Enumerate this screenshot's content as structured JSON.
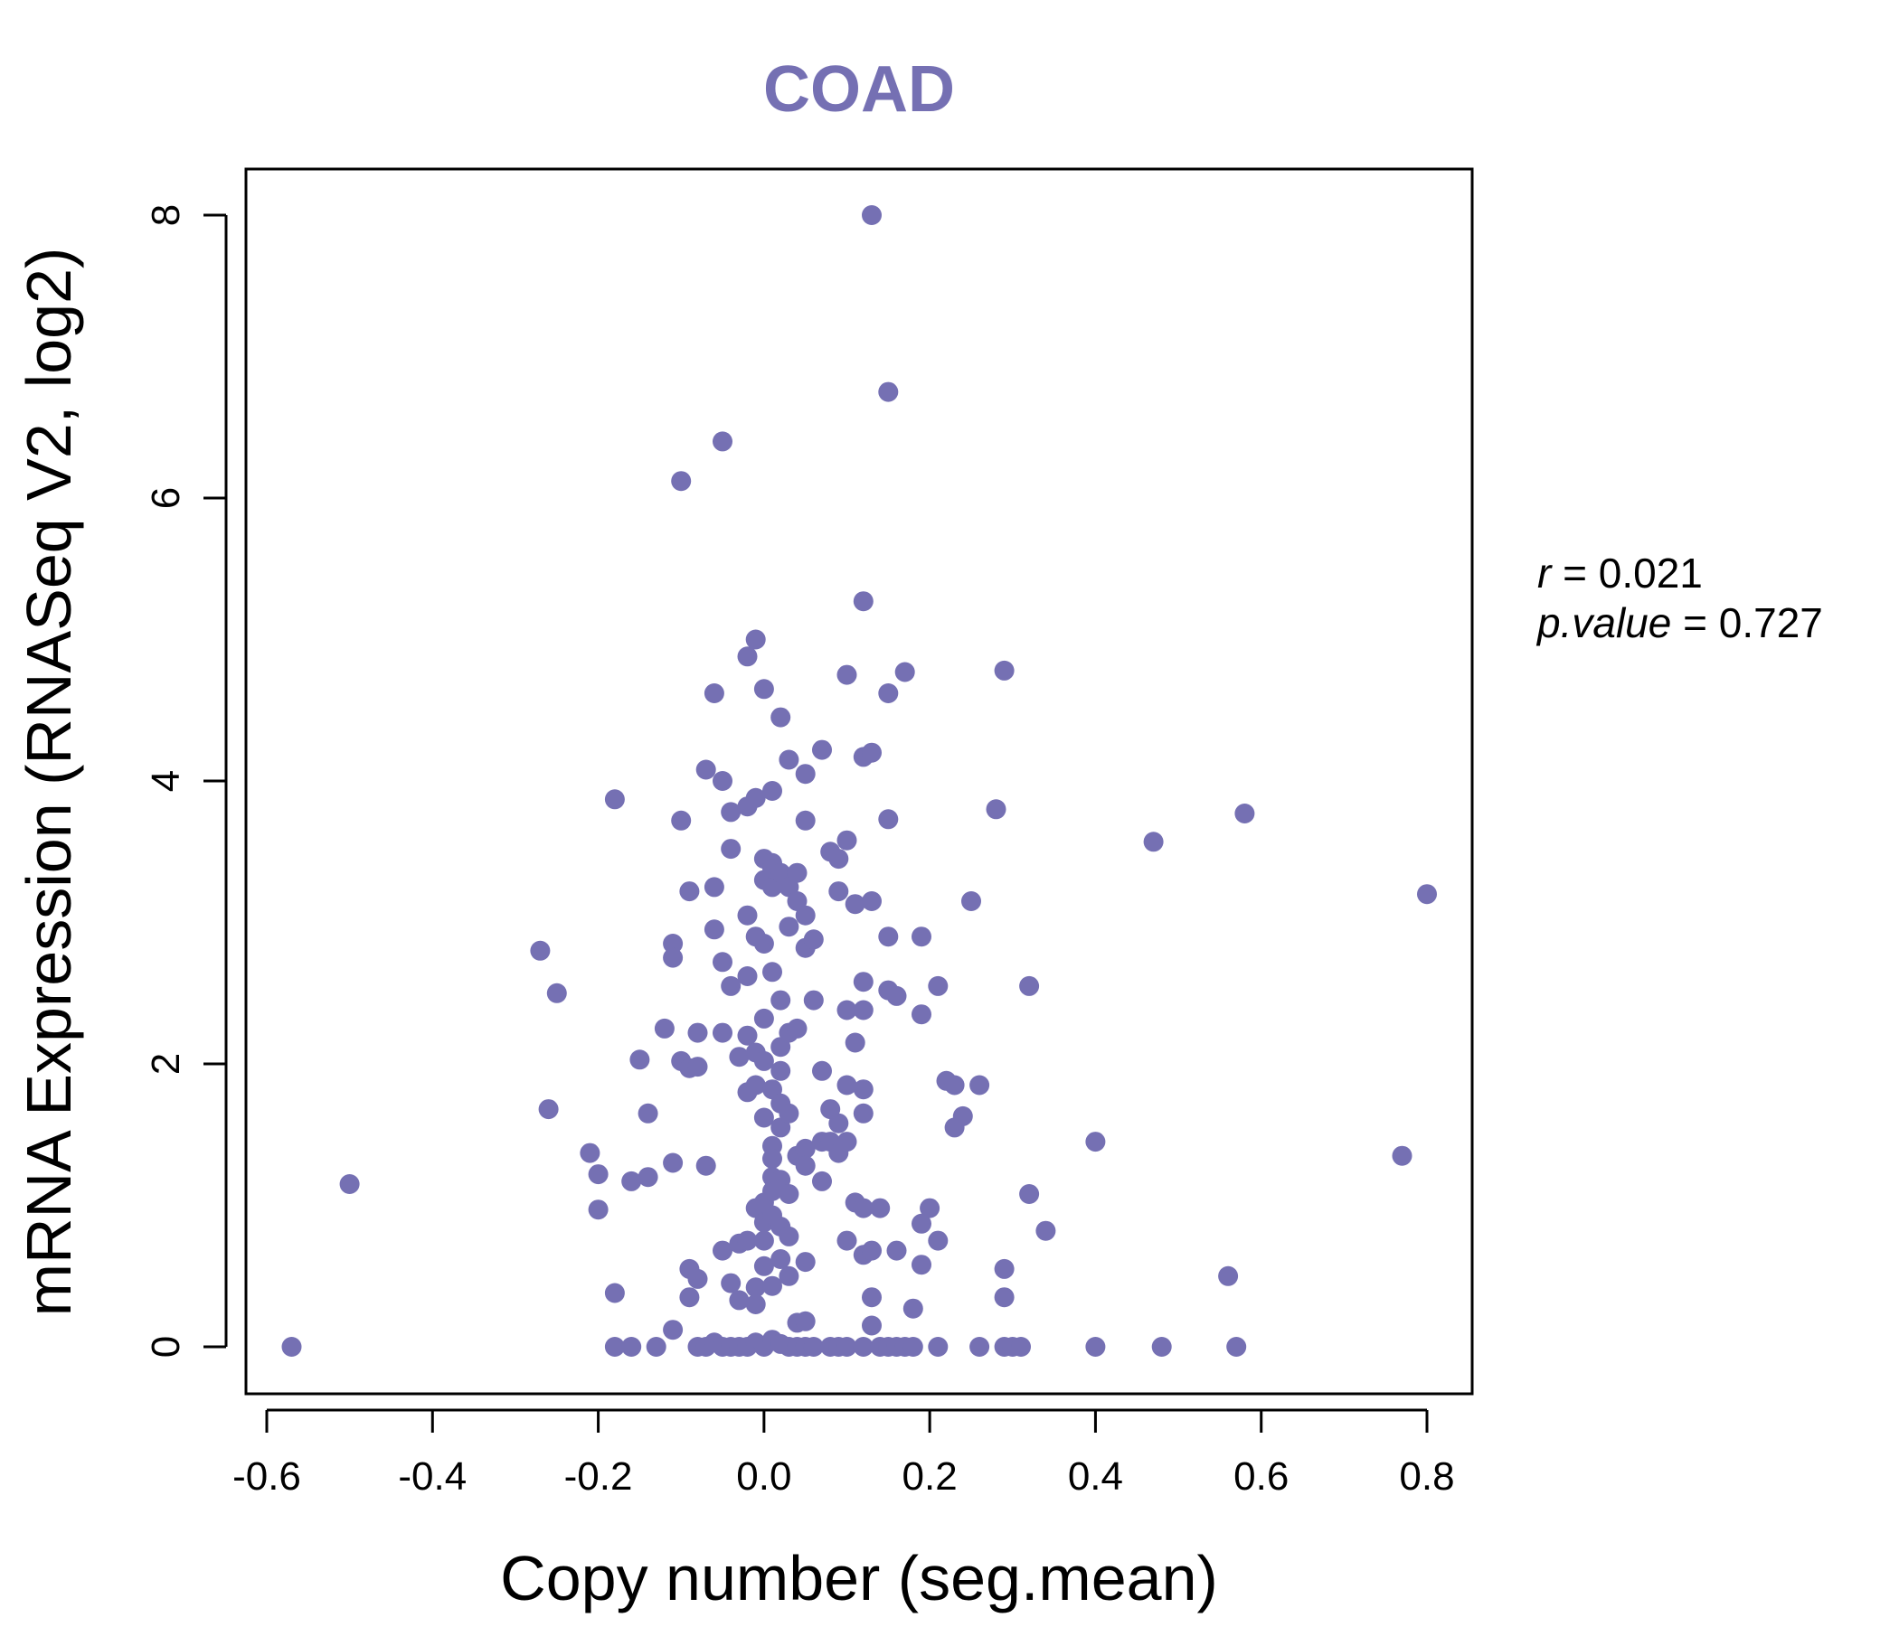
{
  "chart_data": {
    "type": "scatter",
    "title": "COAD",
    "xlabel": "Copy number (seg.mean)",
    "ylabel": "mRNA Expression (RNASeq V2, log2)",
    "xlim": [
      -0.6,
      0.8
    ],
    "ylim": [
      0,
      8
    ],
    "xticks": [
      "-0.6",
      "-0.4",
      "-0.2",
      "0.0",
      "0.2",
      "0.4",
      "0.6",
      "0.8"
    ],
    "yticks": [
      "0",
      "2",
      "4",
      "6",
      "8"
    ],
    "point_color": "#7570b3",
    "stats": {
      "r_label": "r",
      "r_value": "0.021",
      "p_label": "p.value",
      "p_value": "0.727"
    },
    "points": [
      [
        -0.57,
        0
      ],
      [
        -0.5,
        1.15
      ],
      [
        -0.27,
        2.8
      ],
      [
        -0.25,
        2.5
      ],
      [
        -0.26,
        1.68
      ],
      [
        -0.21,
        1.37
      ],
      [
        -0.2,
        1.22
      ],
      [
        -0.2,
        0.97
      ],
      [
        -0.18,
        0.38
      ],
      [
        -0.18,
        0
      ],
      [
        -0.18,
        3.87
      ],
      [
        -0.16,
        1.17
      ],
      [
        -0.16,
        0
      ],
      [
        -0.15,
        2.03
      ],
      [
        -0.14,
        1.2
      ],
      [
        -0.14,
        1.65
      ],
      [
        -0.13,
        0
      ],
      [
        -0.12,
        2.25
      ],
      [
        -0.11,
        1.3
      ],
      [
        -0.11,
        2.85
      ],
      [
        -0.11,
        2.75
      ],
      [
        -0.11,
        0.12
      ],
      [
        -0.1,
        3.72
      ],
      [
        -0.1,
        2.02
      ],
      [
        -0.1,
        6.12
      ],
      [
        -0.09,
        3.22
      ],
      [
        -0.09,
        1.97
      ],
      [
        -0.09,
        0.55
      ],
      [
        -0.09,
        0.35
      ],
      [
        -0.08,
        0.48
      ],
      [
        -0.08,
        2.22
      ],
      [
        -0.08,
        1.98
      ],
      [
        -0.08,
        0
      ],
      [
        -0.07,
        1.28
      ],
      [
        -0.07,
        4.08
      ],
      [
        -0.07,
        0
      ],
      [
        -0.06,
        3.25
      ],
      [
        -0.06,
        4.62
      ],
      [
        -0.06,
        2.95
      ],
      [
        -0.06,
        0.03
      ],
      [
        -0.05,
        6.4
      ],
      [
        -0.05,
        4.0
      ],
      [
        -0.05,
        2.72
      ],
      [
        -0.05,
        2.22
      ],
      [
        -0.05,
        0.68
      ],
      [
        -0.05,
        0
      ],
      [
        -0.04,
        3.78
      ],
      [
        -0.04,
        3.52
      ],
      [
        -0.04,
        2.55
      ],
      [
        -0.04,
        0.45
      ],
      [
        -0.04,
        0
      ],
      [
        -0.03,
        2.05
      ],
      [
        -0.03,
        0.33
      ],
      [
        -0.03,
        0.73
      ],
      [
        -0.03,
        0
      ],
      [
        -0.02,
        3.82
      ],
      [
        -0.02,
        2.2
      ],
      [
        -0.02,
        1.8
      ],
      [
        -0.02,
        4.88
      ],
      [
        -0.02,
        3.05
      ],
      [
        -0.02,
        2.62
      ],
      [
        -0.02,
        0.75
      ],
      [
        -0.02,
        0
      ],
      [
        -0.01,
        5.0
      ],
      [
        -0.01,
        3.88
      ],
      [
        -0.01,
        2.9
      ],
      [
        -0.01,
        1.85
      ],
      [
        -0.01,
        0.98
      ],
      [
        -0.01,
        0.42
      ],
      [
        -0.01,
        0.3
      ],
      [
        -0.01,
        2.08
      ],
      [
        -0.01,
        0.03
      ],
      [
        0.0,
        3.45
      ],
      [
        0.0,
        3.3
      ],
      [
        0.0,
        2.85
      ],
      [
        0.0,
        2.02
      ],
      [
        0.0,
        1.62
      ],
      [
        0.0,
        0.88
      ],
      [
        0.0,
        0.57
      ],
      [
        0.0,
        0
      ],
      [
        0.0,
        4.65
      ],
      [
        0.0,
        2.32
      ],
      [
        0.0,
        1.02
      ],
      [
        0.0,
        0.75
      ],
      [
        0.01,
        3.42
      ],
      [
        0.01,
        3.25
      ],
      [
        0.01,
        2.65
      ],
      [
        0.01,
        1.82
      ],
      [
        0.01,
        1.42
      ],
      [
        0.01,
        1.33
      ],
      [
        0.01,
        1.2
      ],
      [
        0.01,
        0.93
      ],
      [
        0.01,
        0.43
      ],
      [
        0.01,
        0.05
      ],
      [
        0.01,
        3.38
      ],
      [
        0.01,
        3.93
      ],
      [
        0.01,
        1.1
      ],
      [
        0.02,
        4.45
      ],
      [
        0.02,
        3.35
      ],
      [
        0.02,
        2.45
      ],
      [
        0.02,
        2.12
      ],
      [
        0.02,
        1.95
      ],
      [
        0.02,
        1.72
      ],
      [
        0.02,
        1.55
      ],
      [
        0.02,
        1.18
      ],
      [
        0.02,
        0.85
      ],
      [
        0.02,
        0.62
      ],
      [
        0.02,
        0.02
      ],
      [
        0.03,
        4.15
      ],
      [
        0.03,
        3.25
      ],
      [
        0.03,
        2.97
      ],
      [
        0.03,
        2.22
      ],
      [
        0.03,
        1.65
      ],
      [
        0.03,
        1.08
      ],
      [
        0.03,
        0.78
      ],
      [
        0.03,
        0.5
      ],
      [
        0.03,
        0
      ],
      [
        0.04,
        3.35
      ],
      [
        0.04,
        3.15
      ],
      [
        0.04,
        2.25
      ],
      [
        0.04,
        1.35
      ],
      [
        0.04,
        0.17
      ],
      [
        0.04,
        0
      ],
      [
        0.05,
        4.05
      ],
      [
        0.05,
        3.72
      ],
      [
        0.05,
        3.05
      ],
      [
        0.05,
        2.82
      ],
      [
        0.05,
        1.4
      ],
      [
        0.05,
        1.28
      ],
      [
        0.05,
        0.6
      ],
      [
        0.05,
        0.18
      ],
      [
        0.05,
        0
      ],
      [
        0.06,
        2.45
      ],
      [
        0.06,
        2.88
      ],
      [
        0.06,
        0
      ],
      [
        0.07,
        4.22
      ],
      [
        0.07,
        1.95
      ],
      [
        0.07,
        1.45
      ],
      [
        0.07,
        1.17
      ],
      [
        0.08,
        3.5
      ],
      [
        0.08,
        1.68
      ],
      [
        0.08,
        1.45
      ],
      [
        0.08,
        0
      ],
      [
        0.09,
        3.45
      ],
      [
        0.09,
        3.22
      ],
      [
        0.09,
        1.58
      ],
      [
        0.09,
        1.37
      ],
      [
        0.09,
        0
      ],
      [
        0.1,
        4.75
      ],
      [
        0.1,
        3.58
      ],
      [
        0.1,
        2.38
      ],
      [
        0.1,
        1.85
      ],
      [
        0.1,
        1.45
      ],
      [
        0.1,
        0.75
      ],
      [
        0.1,
        0
      ],
      [
        0.11,
        3.13
      ],
      [
        0.11,
        2.15
      ],
      [
        0.11,
        1.02
      ],
      [
        0.12,
        1.65
      ],
      [
        0.12,
        4.17
      ],
      [
        0.12,
        5.27
      ],
      [
        0.12,
        2.58
      ],
      [
        0.12,
        2.38
      ],
      [
        0.12,
        1.82
      ],
      [
        0.12,
        0.98
      ],
      [
        0.12,
        0.65
      ],
      [
        0.12,
        0
      ],
      [
        0.13,
        8.0
      ],
      [
        0.13,
        4.2
      ],
      [
        0.13,
        3.15
      ],
      [
        0.13,
        0.68
      ],
      [
        0.13,
        0.35
      ],
      [
        0.13,
        0.15
      ],
      [
        0.14,
        0.98
      ],
      [
        0.14,
        0
      ],
      [
        0.15,
        6.75
      ],
      [
        0.15,
        4.62
      ],
      [
        0.15,
        3.73
      ],
      [
        0.15,
        2.9
      ],
      [
        0.15,
        2.52
      ],
      [
        0.15,
        0
      ],
      [
        0.16,
        2.48
      ],
      [
        0.16,
        0.68
      ],
      [
        0.16,
        0
      ],
      [
        0.17,
        4.77
      ],
      [
        0.17,
        0
      ],
      [
        0.18,
        0.27
      ],
      [
        0.18,
        0
      ],
      [
        0.19,
        2.9
      ],
      [
        0.19,
        2.35
      ],
      [
        0.19,
        0.87
      ],
      [
        0.19,
        0.58
      ],
      [
        0.2,
        0.98
      ],
      [
        0.21,
        2.55
      ],
      [
        0.21,
        0.75
      ],
      [
        0.21,
        0
      ],
      [
        0.22,
        1.88
      ],
      [
        0.23,
        1.85
      ],
      [
        0.23,
        1.55
      ],
      [
        0.24,
        1.63
      ],
      [
        0.25,
        3.15
      ],
      [
        0.26,
        1.85
      ],
      [
        0.26,
        0
      ],
      [
        0.28,
        3.8
      ],
      [
        0.29,
        4.78
      ],
      [
        0.29,
        0.55
      ],
      [
        0.29,
        0.35
      ],
      [
        0.29,
        0
      ],
      [
        0.3,
        0
      ],
      [
        0.31,
        0
      ],
      [
        0.32,
        2.55
      ],
      [
        0.32,
        1.08
      ],
      [
        0.34,
        0.82
      ],
      [
        0.4,
        1.45
      ],
      [
        0.4,
        0
      ],
      [
        0.47,
        3.57
      ],
      [
        0.48,
        0
      ],
      [
        0.56,
        0.5
      ],
      [
        0.57,
        0
      ],
      [
        0.58,
        3.77
      ],
      [
        0.77,
        1.35
      ],
      [
        0.8,
        3.2
      ]
    ]
  }
}
